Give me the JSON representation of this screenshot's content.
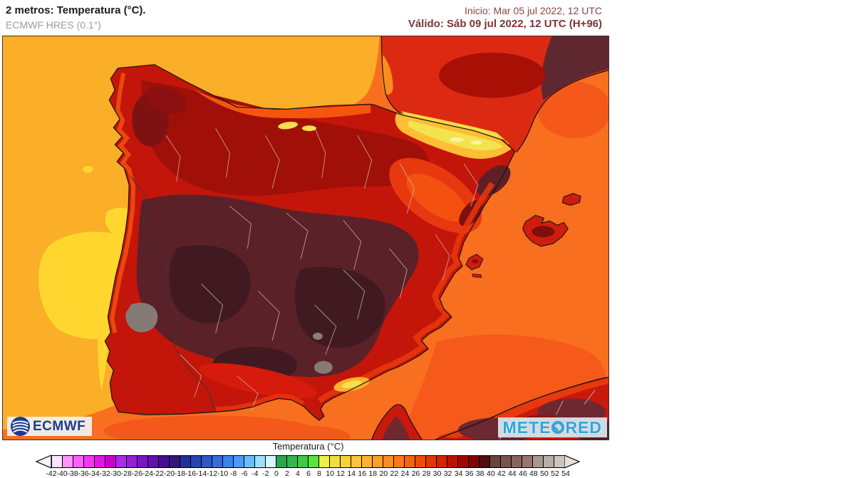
{
  "header": {
    "title": "2 metros: Temperatura (°C).",
    "model_label": "ECMWF HRES (0.1°)",
    "init_time": "Inicio: Mar 05 jul 2022, 12 UTC",
    "valid_time": "Válido: Sáb 09 jul 2022, 12 UTC (H+96)"
  },
  "map": {
    "region": "Iberian Peninsula",
    "ecmwf_logo": "ECMWF",
    "meteored_logo_pre": "METE",
    "meteored_logo_post": "RED"
  },
  "colorbar": {
    "title": "Temperatura (°C)",
    "unit": "°C",
    "min": -42,
    "max": 54,
    "step": 2,
    "tick_labels": [
      "-42",
      "-40",
      "-38",
      "-36",
      "-34",
      "-32",
      "-30",
      "-28",
      "-26",
      "-24",
      "-22",
      "-20",
      "-18",
      "-16",
      "-14",
      "-12",
      "-10",
      "-8",
      "-6",
      "-4",
      "-2",
      "0",
      "2",
      "4",
      "6",
      "8",
      "10",
      "12",
      "14",
      "16",
      "18",
      "20",
      "22",
      "24",
      "26",
      "28",
      "30",
      "32",
      "34",
      "36",
      "38",
      "40",
      "42",
      "44",
      "46",
      "48",
      "50",
      "52",
      "54"
    ],
    "cell_colors": [
      "#FBE3FB",
      "#FF94FF",
      "#FD60FD",
      "#F237F2",
      "#E414E4",
      "#C900C9",
      "#AC2BE9",
      "#9421D8",
      "#7B16C5",
      "#6110AE",
      "#470A92",
      "#33157C",
      "#203097",
      "#2646B0",
      "#2C59C4",
      "#336DD8",
      "#3B83EA",
      "#4C9AF6",
      "#68BDFF",
      "#A0DFFF",
      "#D4F4FF",
      "#2BA54B",
      "#33B64E",
      "#3FC945",
      "#58E33E",
      "#EEEF49",
      "#F0E03C",
      "#F8D13A",
      "#FFC23A",
      "#FFB133",
      "#FF9F2A",
      "#FF8D21",
      "#FB791A",
      "#F56312",
      "#EC4E09",
      "#E03802",
      "#D22500",
      "#BB1300",
      "#A20800",
      "#810300",
      "#550E0E",
      "#6A443F",
      "#79534D",
      "#89645E",
      "#98766F",
      "#A89890",
      "#BAAEA8",
      "#CCC4BF"
    ],
    "arrow_left_color": "#FBEFFB",
    "arrow_right_color": "#E6E0DC"
  },
  "colors": {
    "sea_orange": "#F86F1F",
    "atlantic_amber": "#FBAE27",
    "cool_yellow": "#FFD62E",
    "hot_land_dark": "#5A2129",
    "header_accent": "#7D3535",
    "meteored_blue": "#2FA6DB",
    "ecmwf_blue": "#1A3C96"
  }
}
